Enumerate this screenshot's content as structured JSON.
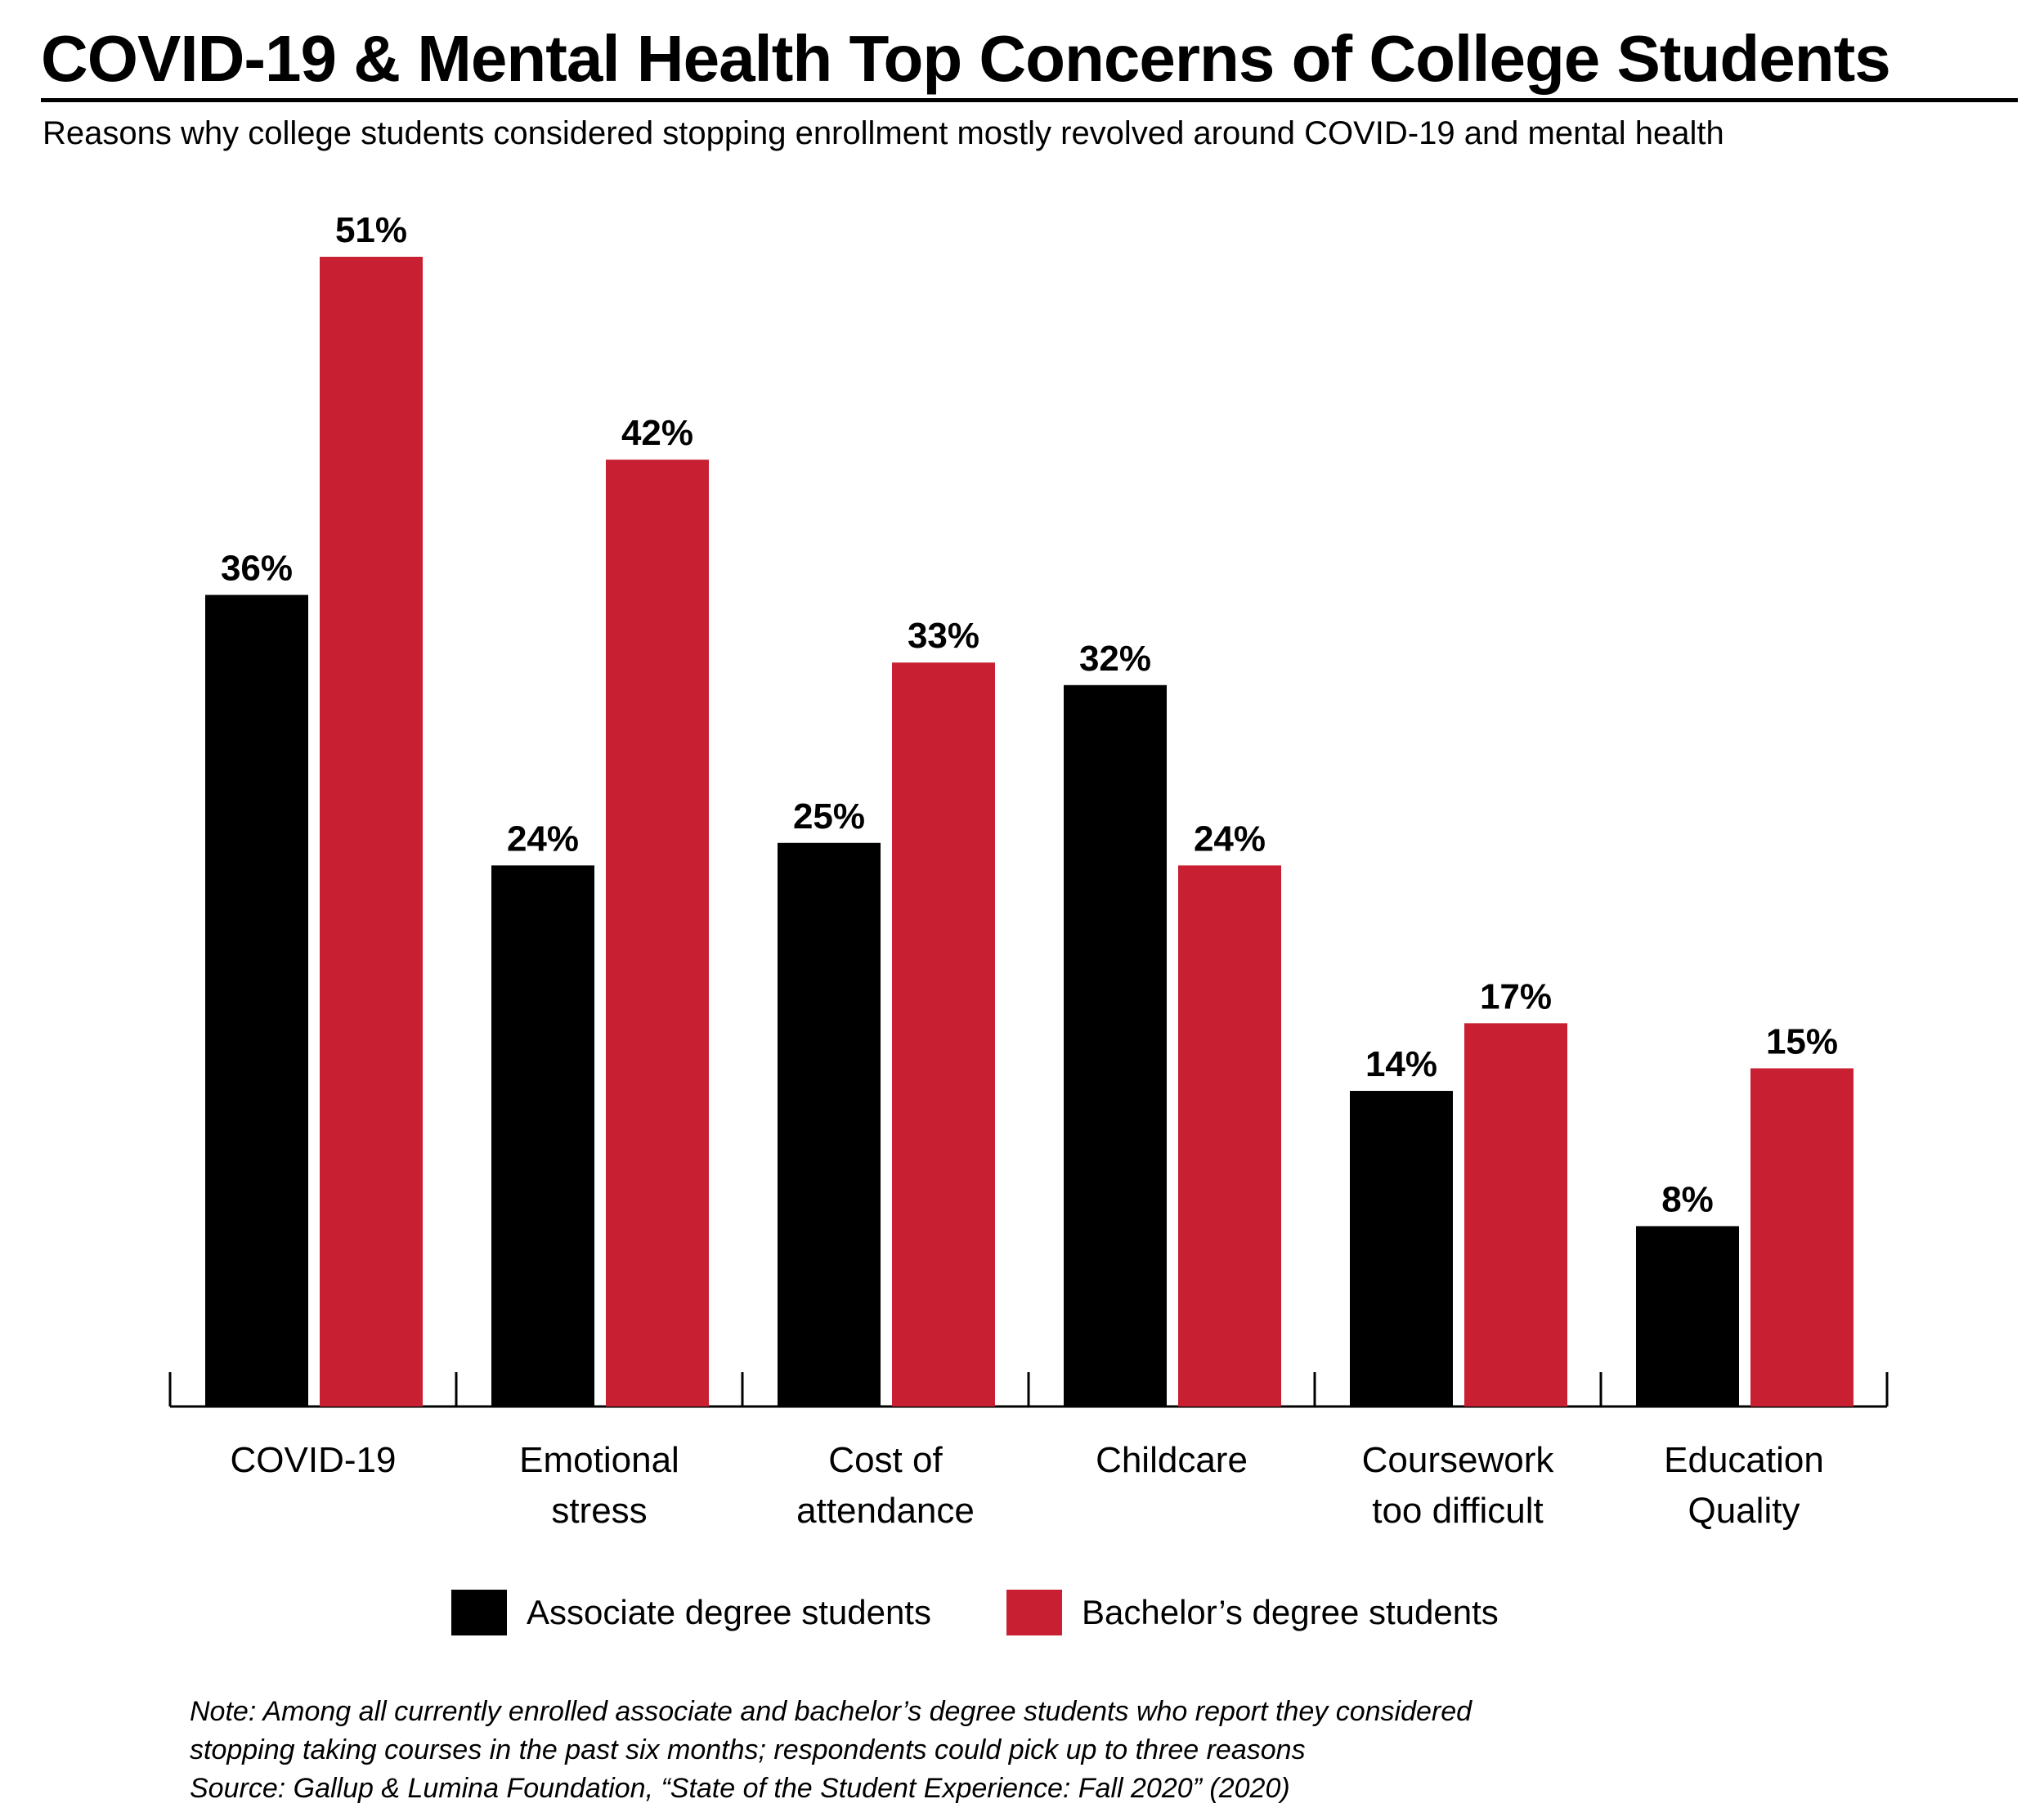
{
  "header": {
    "title": "COVID-19 & Mental Health Top Concerns of College Students",
    "subtitle": "Reasons why college students considered stopping enrollment mostly revolved around COVID-19 and mental health"
  },
  "chart_data": {
    "type": "bar",
    "title": "COVID-19 & Mental Health Top Concerns of College Students",
    "subtitle": "Reasons why college students considered stopping enrollment mostly revolved around COVID-19 and mental health",
    "xlabel": "",
    "ylabel": "",
    "ylim": [
      0,
      51
    ],
    "grid": false,
    "legend_position": "bottom",
    "categories": [
      [
        "COVID-19"
      ],
      [
        "Emotional",
        "stress"
      ],
      [
        "Cost of",
        "attendance"
      ],
      [
        "Childcare"
      ],
      [
        "Coursework",
        "too difficult"
      ],
      [
        "Education",
        "Quality"
      ]
    ],
    "series": [
      {
        "name": "Associate degree students",
        "color": "#000000",
        "values": [
          36,
          24,
          25,
          32,
          14,
          8
        ],
        "labels": [
          "36%",
          "24%",
          "25%",
          "32%",
          "14%",
          "8%"
        ]
      },
      {
        "name": "Bachelor’s degree students",
        "color": "#c82032",
        "values": [
          51,
          42,
          33,
          24,
          17,
          15
        ],
        "labels": [
          "51%",
          "42%",
          "33%",
          "24%",
          "17%",
          "15%"
        ]
      }
    ]
  },
  "legend": {
    "associate": "Associate degree students",
    "bachelor": "Bachelor’s degree students",
    "associate_color": "#000000",
    "bachelor_color": "#c82032"
  },
  "note": {
    "line1": "Note: Among all currently enrolled associate and bachelor’s degree students who report they considered",
    "line2": "stopping taking courses in the past six months; respondents could pick up to three reasons",
    "line3": "Source: Gallup & Lumina Foundation, “State of the Student Experience: Fall 2020” (2020)"
  }
}
